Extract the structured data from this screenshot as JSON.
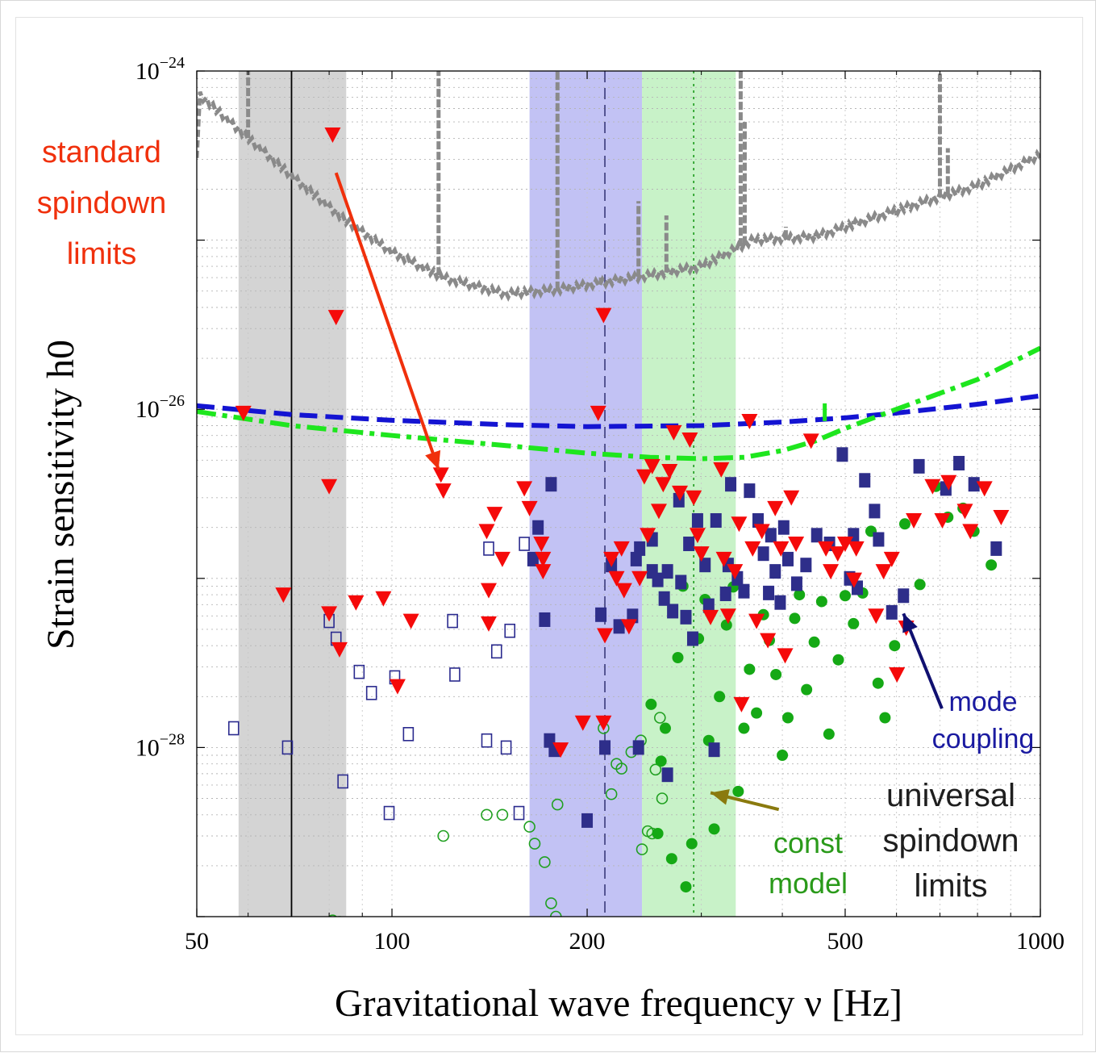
{
  "chart_data": {
    "type": "scatter",
    "xlabel": "Gravitational wave frequency ν [Hz]",
    "ylabel": "Strain sensitivity h0",
    "x_scale": "log",
    "y_scale": "log",
    "xlim": [
      50,
      1000
    ],
    "ylim": [
      1e-29,
      1e-24
    ],
    "x_ticks": [
      {
        "value": 50,
        "label": "50"
      },
      {
        "value": 100,
        "label": "100"
      },
      {
        "value": 200,
        "label": "200"
      },
      {
        "value": 500,
        "label": "500"
      },
      {
        "value": 1000,
        "label": "1000"
      }
    ],
    "y_ticks": [
      {
        "value": 1e-24,
        "base": "10",
        "exp": "−24"
      },
      {
        "value": 1e-26,
        "base": "10",
        "exp": "−26"
      },
      {
        "value": 1e-28,
        "base": "10",
        "exp": "−28"
      }
    ],
    "grid": true,
    "bands": [
      {
        "x0": 58,
        "x1": 85,
        "color": "#d4d4d4"
      },
      {
        "x0": 163,
        "x1": 243,
        "color": "#c2c2f4"
      },
      {
        "x0": 243,
        "x1": 339,
        "color": "#c8f2c8"
      }
    ],
    "vlines": [
      {
        "x": 70,
        "color": "#000000",
        "style": "solid"
      },
      {
        "x": 213,
        "color": "#3a3a7a",
        "style": "dashed"
      },
      {
        "x": 292,
        "color": "#1a9a1a",
        "style": "dotted"
      }
    ],
    "curves": [
      {
        "style": "gray-noise",
        "color": "#8a8a8a",
        "points": [
          [
            50,
            7.5e-25
          ],
          [
            58,
            4.5e-25
          ],
          [
            70,
            2.4e-25
          ],
          [
            85,
            1.3e-25
          ],
          [
            100,
            8.5e-26
          ],
          [
            120,
            6e-26
          ],
          [
            150,
            4.8e-26
          ],
          [
            180,
            5.1e-26
          ],
          [
            210,
            5.6e-26
          ],
          [
            250,
            6.2e-26
          ],
          [
            300,
            7e-26
          ],
          [
            360,
            1e-25
          ],
          [
            450,
            1.05e-25
          ],
          [
            600,
            1.5e-25
          ],
          [
            800,
            2.1e-25
          ],
          [
            1000,
            3.2e-25
          ]
        ],
        "spikes": [
          [
            60,
            1e-24
          ],
          [
            118,
            1e-24
          ],
          [
            180,
            1e-24
          ],
          [
            210,
            6e-26
          ],
          [
            240,
            1.7e-25
          ],
          [
            265,
            1.4e-25
          ],
          [
            345,
            1e-24
          ],
          [
            350,
            5e-25
          ],
          [
            405,
            1.2e-25
          ],
          [
            450,
            1.1e-25
          ],
          [
            515,
            1.3e-25
          ],
          [
            600,
            1.4e-25
          ],
          [
            700,
            1e-24
          ],
          [
            720,
            3.5e-25
          ]
        ]
      },
      {
        "style": "blue-dashed",
        "color": "#1414d2",
        "points": [
          [
            50,
            1.05e-26
          ],
          [
            70,
            9.3e-27
          ],
          [
            100,
            8.6e-27
          ],
          [
            150,
            8.1e-27
          ],
          [
            200,
            7.9e-27
          ],
          [
            300,
            8e-27
          ],
          [
            400,
            8.4e-27
          ],
          [
            500,
            8.9e-27
          ],
          [
            600,
            9.5e-27
          ],
          [
            800,
            1.07e-26
          ],
          [
            1000,
            1.2e-26
          ]
        ]
      },
      {
        "style": "green-dashdot",
        "color": "#1ee61e",
        "points": [
          [
            50,
            9.7e-27
          ],
          [
            70,
            8e-27
          ],
          [
            100,
            7e-27
          ],
          [
            150,
            6.1e-27
          ],
          [
            200,
            5.5e-27
          ],
          [
            250,
            5.2e-27
          ],
          [
            300,
            5.1e-27
          ],
          [
            350,
            5.2e-27
          ],
          [
            400,
            5.7e-27
          ],
          [
            450,
            6.5e-27
          ],
          [
            500,
            7.7e-27
          ],
          [
            600,
            1e-26
          ],
          [
            800,
            1.5e-26
          ],
          [
            1000,
            2.3e-26
          ]
        ]
      }
    ],
    "series_red_triangles": [
      [
        59,
        9.5e-27
      ],
      [
        68,
        8e-28
      ],
      [
        80,
        3.5e-27
      ],
      [
        80,
        6.2e-28
      ],
      [
        81,
        4.2e-25
      ],
      [
        82,
        3.5e-26
      ],
      [
        83,
        3.8e-28
      ],
      [
        88,
        7.2e-28
      ],
      [
        97,
        7.6e-28
      ],
      [
        102,
        2.3e-28
      ],
      [
        107,
        5.6e-28
      ],
      [
        119,
        4.1e-27
      ],
      [
        120,
        3.3e-27
      ],
      [
        140,
        1.9e-27
      ],
      [
        141,
        8.5e-28
      ],
      [
        141,
        5.4e-28
      ],
      [
        144,
        2.4e-27
      ],
      [
        148,
        1.3e-27
      ],
      [
        160,
        3.4e-27
      ],
      [
        163,
        2.6e-27
      ],
      [
        170,
        1.6e-27
      ],
      [
        171,
        1.3e-27
      ],
      [
        171,
        1.1e-27
      ],
      [
        182,
        9.7e-29
      ],
      [
        197,
        1.4e-28
      ],
      [
        208,
        9.5e-27
      ],
      [
        212,
        3.6e-26
      ],
      [
        212,
        1.4e-28
      ],
      [
        213,
        4.6e-28
      ],
      [
        218,
        1.3e-27
      ],
      [
        222,
        1e-27
      ],
      [
        226,
        1.5e-27
      ],
      [
        228,
        8.5e-28
      ],
      [
        232,
        5.2e-28
      ],
      [
        241,
        1e-27
      ],
      [
        245,
        4e-27
      ],
      [
        248,
        1.8e-27
      ],
      [
        252,
        4.6e-27
      ],
      [
        258,
        2.5e-27
      ],
      [
        262,
        3.6e-27
      ],
      [
        268,
        4.3e-27
      ],
      [
        272,
        7.3e-27
      ],
      [
        278,
        3.2e-27
      ],
      [
        288,
        6.6e-27
      ],
      [
        292,
        3e-27
      ],
      [
        296,
        1.8e-27
      ],
      [
        300,
        1.4e-27
      ],
      [
        310,
        5.9e-28
      ],
      [
        322,
        4.4e-27
      ],
      [
        325,
        1.3e-27
      ],
      [
        330,
        6e-28
      ],
      [
        338,
        1.1e-27
      ],
      [
        343,
        2.1e-27
      ],
      [
        346,
        1.8e-28
      ],
      [
        356,
        8.5e-27
      ],
      [
        360,
        1.5e-27
      ],
      [
        365,
        5.6e-28
      ],
      [
        372,
        1.9e-27
      ],
      [
        380,
        4.3e-28
      ],
      [
        390,
        2.6e-27
      ],
      [
        398,
        1.5e-27
      ],
      [
        404,
        3.5e-28
      ],
      [
        413,
        3e-27
      ],
      [
        420,
        1.6e-27
      ],
      [
        443,
        6.5e-27
      ],
      [
        467,
        1.5e-27
      ],
      [
        475,
        1.1e-27
      ],
      [
        487,
        1.4e-27
      ],
      [
        500,
        1.6e-27
      ],
      [
        516,
        9.8e-28
      ],
      [
        520,
        1.5e-27
      ],
      [
        558,
        6e-28
      ],
      [
        573,
        1.1e-27
      ],
      [
        590,
        1.3e-27
      ],
      [
        601,
        2.7e-28
      ],
      [
        621,
        5.1e-28
      ],
      [
        638,
        2.2e-27
      ],
      [
        682,
        3.5e-27
      ],
      [
        706,
        2.2e-27
      ],
      [
        722,
        3.7e-27
      ],
      [
        765,
        2.5e-27
      ],
      [
        780,
        1.9e-27
      ],
      [
        820,
        3.4e-27
      ],
      [
        870,
        2.3e-27
      ]
    ],
    "series_blue_filled_squares": [
      [
        176,
        3.6e-27
      ],
      [
        168,
        2e-27
      ],
      [
        165,
        1.3e-27
      ],
      [
        172,
        5.7e-28
      ],
      [
        175,
        1.1e-28
      ],
      [
        178,
        9.7e-29
      ],
      [
        200,
        3.7e-29
      ],
      [
        210,
        6.1e-28
      ],
      [
        213,
        1e-28
      ],
      [
        218,
        1.2e-27
      ],
      [
        224,
        5.2e-28
      ],
      [
        235,
        6e-28
      ],
      [
        238,
        1.3e-27
      ],
      [
        240,
        1e-28
      ],
      [
        241,
        1.5e-27
      ],
      [
        252,
        1.7e-27
      ],
      [
        252,
        1.1e-27
      ],
      [
        257,
        9.8e-28
      ],
      [
        263,
        7.6e-28
      ],
      [
        266,
        1.1e-27
      ],
      [
        266,
        6.9e-29
      ],
      [
        271,
        6.4e-28
      ],
      [
        277,
        2.9e-27
      ],
      [
        279,
        9.5e-28
      ],
      [
        284,
        5.9e-28
      ],
      [
        287,
        1.6e-27
      ],
      [
        291,
        4.4e-28
      ],
      [
        296,
        2.2e-27
      ],
      [
        304,
        1.2e-27
      ],
      [
        308,
        6.9e-28
      ],
      [
        314,
        9.7e-29
      ],
      [
        316,
        2.2e-27
      ],
      [
        327,
        8.1e-28
      ],
      [
        330,
        1.2e-27
      ],
      [
        333,
        3.6e-27
      ],
      [
        341,
        1e-27
      ],
      [
        349,
        8.4e-28
      ],
      [
        356,
        3.3e-27
      ],
      [
        367,
        2.2e-27
      ],
      [
        374,
        1.4e-27
      ],
      [
        381,
        8.2e-28
      ],
      [
        384,
        1.8e-27
      ],
      [
        390,
        1.1e-27
      ],
      [
        397,
        7.2e-28
      ],
      [
        402,
        2e-27
      ],
      [
        408,
        1.3e-27
      ],
      [
        421,
        9.3e-28
      ],
      [
        435,
        1.2e-27
      ],
      [
        452,
        1.8e-27
      ],
      [
        473,
        1.6e-27
      ],
      [
        495,
        5.4e-27
      ],
      [
        508,
        1e-27
      ],
      [
        515,
        1.8e-27
      ],
      [
        522,
        8.8e-28
      ],
      [
        536,
        3.8e-27
      ],
      [
        555,
        2.5e-27
      ],
      [
        563,
        1.7e-27
      ],
      [
        590,
        6.3e-28
      ],
      [
        615,
        7.9e-28
      ],
      [
        650,
        4.6e-27
      ],
      [
        715,
        3.4e-27
      ],
      [
        749,
        4.8e-27
      ],
      [
        790,
        3.6e-27
      ],
      [
        855,
        1.5e-27
      ]
    ],
    "series_blue_open_squares": [
      [
        57,
        1.3e-28
      ],
      [
        69,
        1e-28
      ],
      [
        80,
        5.6e-28
      ],
      [
        82,
        4.4e-28
      ],
      [
        84,
        6.3e-29
      ],
      [
        89,
        2.8e-28
      ],
      [
        93,
        2.1e-28
      ],
      [
        99,
        4.1e-29
      ],
      [
        101,
        2.6e-28
      ],
      [
        106,
        1.2e-28
      ],
      [
        124,
        5.6e-28
      ],
      [
        125,
        2.7e-28
      ],
      [
        140,
        1.1e-28
      ],
      [
        141,
        1.5e-27
      ],
      [
        145,
        3.7e-28
      ],
      [
        150,
        1e-28
      ],
      [
        152,
        4.9e-28
      ],
      [
        157,
        4.1e-29
      ],
      [
        160,
        1.6e-27
      ]
    ],
    "series_green_filled_circles": [
      [
        251,
        1.8e-28
      ],
      [
        257,
        3.1e-29
      ],
      [
        260,
        8.3e-29
      ],
      [
        264,
        1.3e-28
      ],
      [
        270,
        2.2e-29
      ],
      [
        276,
        3.4e-28
      ],
      [
        281,
        9e-28
      ],
      [
        284,
        1.5e-29
      ],
      [
        290,
        2.7e-29
      ],
      [
        297,
        4.4e-28
      ],
      [
        304,
        7.5e-28
      ],
      [
        308,
        1.1e-28
      ],
      [
        314,
        3.3e-29
      ],
      [
        320,
        2e-28
      ],
      [
        328,
        5.3e-28
      ],
      [
        336,
        8.9e-28
      ],
      [
        342,
        5.5e-29
      ],
      [
        349,
        1.3e-28
      ],
      [
        356,
        2.9e-28
      ],
      [
        365,
        1.6e-28
      ],
      [
        374,
        6.1e-28
      ],
      [
        382,
        4.3e-28
      ],
      [
        391,
        2.7e-28
      ],
      [
        400,
        9e-29
      ],
      [
        408,
        1.5e-28
      ],
      [
        418,
        5.8e-28
      ],
      [
        425,
        8e-28
      ],
      [
        436,
        2.2e-28
      ],
      [
        448,
        4.2e-28
      ],
      [
        460,
        7.3e-28
      ],
      [
        472,
        1.2e-28
      ],
      [
        488,
        3.3e-28
      ],
      [
        500,
        7.9e-28
      ],
      [
        515,
        5.4e-28
      ],
      [
        532,
        8.2e-28
      ],
      [
        548,
        1.9e-27
      ],
      [
        562,
        2.4e-28
      ],
      [
        576,
        1.5e-28
      ],
      [
        596,
        4e-28
      ],
      [
        618,
        2.1e-27
      ],
      [
        652,
        9.2e-28
      ],
      [
        690,
        3.5e-27
      ],
      [
        720,
        2.3e-27
      ],
      [
        760,
        2.6e-27
      ],
      [
        790,
        1.9e-27
      ],
      [
        840,
        1.2e-27
      ]
    ],
    "series_green_open_circles": [
      [
        163,
        3.4e-29
      ],
      [
        166,
        2.7e-29
      ],
      [
        172,
        2.1e-29
      ],
      [
        180,
        4.6e-29
      ],
      [
        212,
        1.3e-28
      ],
      [
        218,
        5.3e-29
      ],
      [
        222,
        8e-29
      ],
      [
        226,
        7.5e-29
      ],
      [
        234,
        9.4e-29
      ],
      [
        242,
        1.1e-28
      ],
      [
        243,
        2.5e-29
      ],
      [
        248,
        3.2e-29
      ],
      [
        252,
        3.1e-29
      ],
      [
        255,
        7.4e-29
      ],
      [
        259,
        1.5e-28
      ],
      [
        261,
        5e-29
      ],
      [
        81,
        9.5e-30
      ],
      [
        83,
        9.3e-30
      ],
      [
        120,
        3e-29
      ],
      [
        140,
        4e-29
      ],
      [
        148,
        4e-29
      ],
      [
        176,
        1.2e-29
      ],
      [
        179,
        1e-29
      ]
    ],
    "annotations": [
      {
        "lines": [
          "standard",
          "spindown",
          "limits"
        ],
        "color": "#f0300c"
      },
      {
        "lines": [
          "mode",
          "coupling"
        ],
        "color": "#1a1aa0"
      },
      {
        "lines": [
          "universal",
          "spindown",
          "limits"
        ],
        "color": "#1e1e1e"
      },
      {
        "lines": [
          "const",
          "model"
        ],
        "color": "#2a9a1a"
      }
    ],
    "arrows": [
      {
        "from": [
          82,
          2.5e-25
        ],
        "to": [
          118,
          4.4e-27
        ],
        "color": "#f0300c"
      },
      {
        "from": [
          705,
          1.7e-28
        ],
        "to": [
          615,
          6.2e-28
        ],
        "color": "#101070"
      },
      {
        "from": [
          395,
          4.3e-29
        ],
        "to": [
          310,
          5.4e-29
        ],
        "color": "#8a7a0e"
      }
    ]
  }
}
